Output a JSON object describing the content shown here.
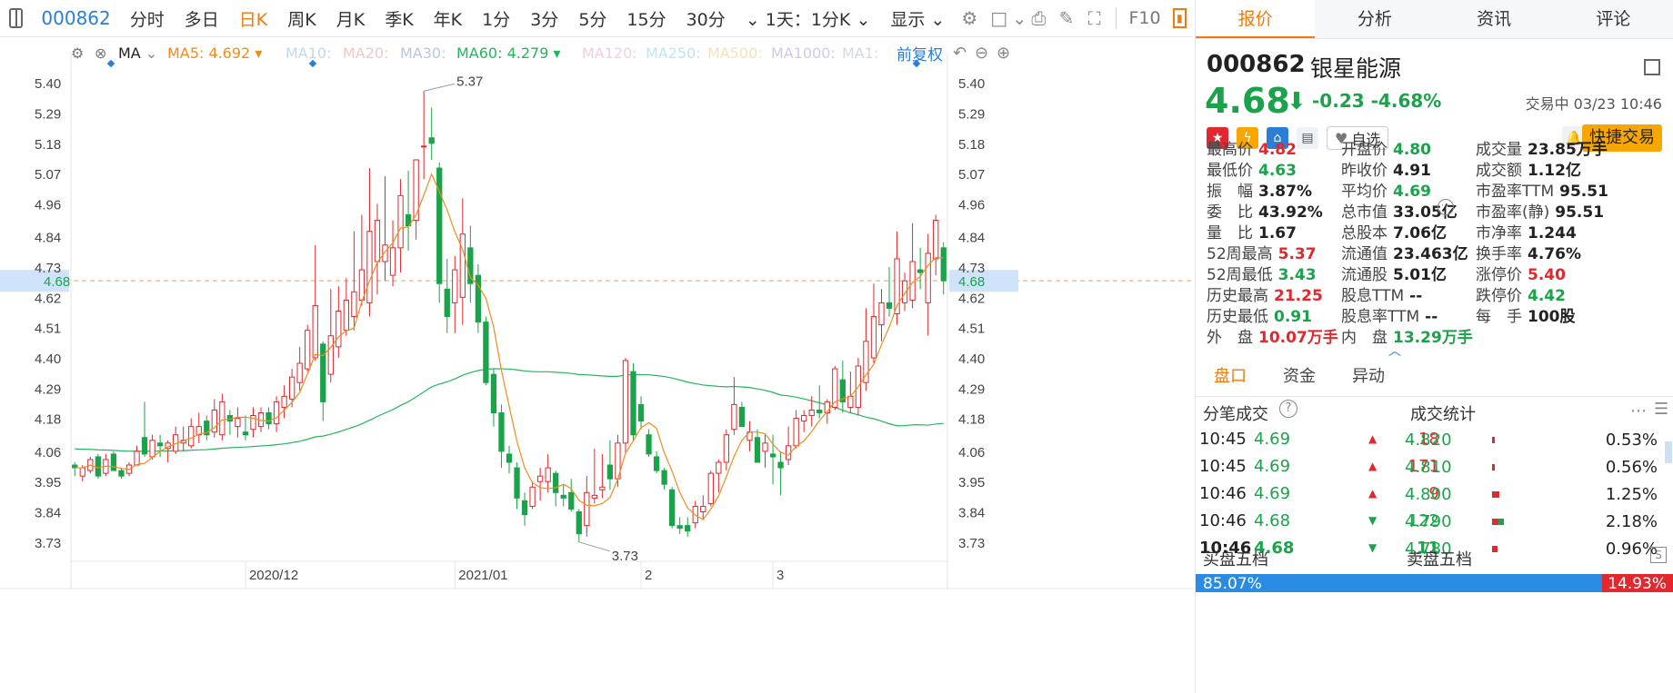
{
  "toolbar": {
    "code": "000862",
    "periods": [
      "分时",
      "多日",
      "日K",
      "周K",
      "月K",
      "季K",
      "年K",
      "1分",
      "3分",
      "5分",
      "15分",
      "30分"
    ],
    "active_period": "日K",
    "more": "1天：1分K",
    "display": "显示",
    "f10": "F10"
  },
  "ma": {
    "label": "MA",
    "ma5": "MA5: 4.692",
    "ma10": "MA10:",
    "ma20": "MA20:",
    "ma30": "MA30:",
    "ma60": "MA60: 4.279",
    "ma120": "MA120:",
    "ma250": "MA250:",
    "ma500": "MA500:",
    "ma1000": "MA1000:",
    "ma1": "MA1:",
    "adjust": "前复权",
    "colors": {
      "ma5": "#f08c1e",
      "ma60": "#27b45e",
      "faded": "#c9cfd8"
    }
  },
  "chart_data": {
    "type": "candlestick",
    "yticks": [
      "5.40",
      "5.29",
      "5.18",
      "5.07",
      "4.96",
      "4.84",
      "4.73",
      "4.62",
      "4.51",
      "4.40",
      "4.29",
      "4.18",
      "4.06",
      "3.95",
      "3.84",
      "3.73"
    ],
    "ylim": [
      3.66,
      5.47
    ],
    "xlabels": [
      "2020/12",
      "2021/01",
      "2",
      "3"
    ],
    "current_price": "4.68",
    "high_label": "5.37",
    "low_label": "3.73",
    "up_color": "#e0282e",
    "down_color": "#1aa34a",
    "candles": [
      [
        4.01,
        4.02,
        3.97,
        4.0
      ],
      [
        3.97,
        4.01,
        3.95,
        4.0
      ],
      [
        3.99,
        4.04,
        3.98,
        4.03
      ],
      [
        4.04,
        4.05,
        3.96,
        3.97
      ],
      [
        3.98,
        4.05,
        3.97,
        4.03
      ],
      [
        4.05,
        4.06,
        3.99,
        3.99
      ],
      [
        3.99,
        4.0,
        3.96,
        3.97
      ],
      [
        3.98,
        4.02,
        3.97,
        4.01
      ],
      [
        4.01,
        4.08,
        4.01,
        4.06
      ],
      [
        4.11,
        4.24,
        4.04,
        4.05
      ],
      [
        4.04,
        4.12,
        4.03,
        4.1
      ],
      [
        4.09,
        4.12,
        4.04,
        4.08
      ],
      [
        4.07,
        4.1,
        4.02,
        4.09
      ],
      [
        4.06,
        4.15,
        4.05,
        4.12
      ],
      [
        4.09,
        4.15,
        4.06,
        4.1
      ],
      [
        4.08,
        4.18,
        4.07,
        4.15
      ],
      [
        4.12,
        4.2,
        4.09,
        4.15
      ],
      [
        4.17,
        4.19,
        4.1,
        4.12
      ],
      [
        4.13,
        4.25,
        4.11,
        4.21
      ],
      [
        4.12,
        4.27,
        4.1,
        4.24
      ],
      [
        4.19,
        4.21,
        4.12,
        4.17
      ],
      [
        4.15,
        4.22,
        4.11,
        4.18
      ],
      [
        4.13,
        4.19,
        4.1,
        4.12
      ],
      [
        4.14,
        4.22,
        4.11,
        4.19
      ],
      [
        4.15,
        4.22,
        4.13,
        4.2
      ],
      [
        4.2,
        4.22,
        4.14,
        4.16
      ],
      [
        4.16,
        4.26,
        4.13,
        4.24
      ],
      [
        4.22,
        4.3,
        4.18,
        4.26
      ],
      [
        4.25,
        4.36,
        4.22,
        4.33
      ],
      [
        4.31,
        4.44,
        4.28,
        4.38
      ],
      [
        4.36,
        4.52,
        4.35,
        4.5
      ],
      [
        4.4,
        4.81,
        4.39,
        4.59
      ],
      [
        4.45,
        4.46,
        4.17,
        4.24
      ],
      [
        4.34,
        4.65,
        4.31,
        4.48
      ],
      [
        4.44,
        4.66,
        4.4,
        4.57
      ],
      [
        4.5,
        4.69,
        4.48,
        4.61
      ],
      [
        4.55,
        4.86,
        4.5,
        4.64
      ],
      [
        4.61,
        4.92,
        4.59,
        4.72
      ],
      [
        4.6,
        5.09,
        4.55,
        4.86
      ],
      [
        4.75,
        4.96,
        4.63,
        4.9
      ],
      [
        4.75,
        5.06,
        4.68,
        4.81
      ],
      [
        4.7,
        4.9,
        4.66,
        4.8
      ],
      [
        4.8,
        5.05,
        4.71,
        4.99
      ],
      [
        4.92,
        5.08,
        4.79,
        4.88
      ],
      [
        4.9,
        5.12,
        4.83,
        5.12
      ],
      [
        5.17,
        5.37,
        5.05,
        5.17
      ],
      [
        5.2,
        5.31,
        5.12,
        5.18
      ],
      [
        5.09,
        5.11,
        4.6,
        4.67
      ],
      [
        4.65,
        4.76,
        4.49,
        4.55
      ],
      [
        4.6,
        4.77,
        4.49,
        4.72
      ],
      [
        4.62,
        4.98,
        4.52,
        4.85
      ],
      [
        4.8,
        4.88,
        4.6,
        4.67
      ],
      [
        4.7,
        4.74,
        4.49,
        4.53
      ],
      [
        4.53,
        4.55,
        4.3,
        4.31
      ],
      [
        4.34,
        4.36,
        4.15,
        4.2
      ],
      [
        4.2,
        4.23,
        4.0,
        4.06
      ],
      [
        4.05,
        4.08,
        3.98,
        4.02
      ],
      [
        4.0,
        4.02,
        3.85,
        3.89
      ],
      [
        3.88,
        3.91,
        3.79,
        3.83
      ],
      [
        3.86,
        3.95,
        3.85,
        3.93
      ],
      [
        3.95,
        4.0,
        3.88,
        3.97
      ],
      [
        3.95,
        4.05,
        3.91,
        4.0
      ],
      [
        3.98,
        3.99,
        3.86,
        3.91
      ],
      [
        3.9,
        3.94,
        3.86,
        3.89
      ],
      [
        3.91,
        3.96,
        3.84,
        3.85
      ],
      [
        3.84,
        3.85,
        3.73,
        3.76
      ],
      [
        3.79,
        3.97,
        3.75,
        3.91
      ],
      [
        3.89,
        4.07,
        3.87,
        3.9
      ],
      [
        3.92,
        4.05,
        3.89,
        3.93
      ],
      [
        4.01,
        4.1,
        3.92,
        3.96
      ],
      [
        3.96,
        4.12,
        3.93,
        4.09
      ],
      [
        4.09,
        4.4,
        4.05,
        4.39
      ],
      [
        4.35,
        4.38,
        4.1,
        4.12
      ],
      [
        4.23,
        4.26,
        4.14,
        4.17
      ],
      [
        4.12,
        4.14,
        4.04,
        4.05
      ],
      [
        4.04,
        4.06,
        3.98,
        3.99
      ],
      [
        3.99,
        4.0,
        3.92,
        3.94
      ],
      [
        3.92,
        3.93,
        3.78,
        3.79
      ],
      [
        3.79,
        3.82,
        3.76,
        3.78
      ],
      [
        3.79,
        3.82,
        3.75,
        3.77
      ],
      [
        3.8,
        3.88,
        3.78,
        3.86
      ],
      [
        3.84,
        3.9,
        3.81,
        3.86
      ],
      [
        3.87,
        3.99,
        3.86,
        3.98
      ],
      [
        3.98,
        4.03,
        3.91,
        4.02
      ],
      [
        4.02,
        4.14,
        3.99,
        4.12
      ],
      [
        4.14,
        4.33,
        4.12,
        4.23
      ],
      [
        4.22,
        4.24,
        4.15,
        4.15
      ],
      [
        4.1,
        4.17,
        4.06,
        4.13
      ],
      [
        4.11,
        4.14,
        4.02,
        4.02
      ],
      [
        4.06,
        4.12,
        4.0,
        4.09
      ],
      [
        4.05,
        4.12,
        3.94,
        4.04
      ],
      [
        4.02,
        4.06,
        3.9,
        4.0
      ],
      [
        4.03,
        4.15,
        4.01,
        4.08
      ],
      [
        4.08,
        4.21,
        4.07,
        4.18
      ],
      [
        4.17,
        4.21,
        4.13,
        4.19
      ],
      [
        4.19,
        4.26,
        4.15,
        4.21
      ],
      [
        4.21,
        4.3,
        4.18,
        4.2
      ],
      [
        4.2,
        4.25,
        4.16,
        4.24
      ],
      [
        4.22,
        4.37,
        4.21,
        4.36
      ],
      [
        4.32,
        4.39,
        4.2,
        4.24
      ],
      [
        4.22,
        4.35,
        4.2,
        4.26
      ],
      [
        4.22,
        4.4,
        4.19,
        4.37
      ],
      [
        4.31,
        4.58,
        4.28,
        4.46
      ],
      [
        4.4,
        4.67,
        4.38,
        4.55
      ],
      [
        4.52,
        4.65,
        4.46,
        4.6
      ],
      [
        4.6,
        4.73,
        4.55,
        4.58
      ],
      [
        4.56,
        4.86,
        4.52,
        4.76
      ],
      [
        4.6,
        4.71,
        4.57,
        4.68
      ],
      [
        4.61,
        4.89,
        4.58,
        4.75
      ],
      [
        4.72,
        4.8,
        4.65,
        4.71
      ],
      [
        4.6,
        4.85,
        4.48,
        4.78
      ],
      [
        4.76,
        4.92,
        4.7,
        4.9
      ],
      [
        4.8,
        4.82,
        4.63,
        4.68
      ]
    ]
  },
  "tabs": [
    "报价",
    "分析",
    "资讯",
    "评论"
  ],
  "active_tab": "报价",
  "stock": {
    "code": "000862",
    "name": "银星能源",
    "price": "4.68",
    "change": "-0.23",
    "change_pct": "-4.68%",
    "status": "交易中 03/23 10:46",
    "watch": "自选",
    "trade": "快捷交易"
  },
  "stats": [
    {
      "label": "最高价",
      "value": "4.82",
      "dir": "up"
    },
    {
      "label": "开盘价",
      "value": "4.80",
      "dir": "dn"
    },
    {
      "label": "成交量",
      "value": "23.85万手",
      "dir": "neu"
    },
    {
      "label": "最低价",
      "value": "4.63",
      "dir": "dn"
    },
    {
      "label": "昨收价",
      "value": "4.91",
      "dir": "neu"
    },
    {
      "label": "成交额",
      "value": "1.12亿",
      "dir": "neu"
    },
    {
      "label": "振　幅",
      "value": "3.87%",
      "dir": "neu"
    },
    {
      "label": "平均价",
      "value": "4.69",
      "dir": "dn"
    },
    {
      "label": "市盈率TTM",
      "value": "95.51",
      "dir": "neu"
    },
    {
      "label": "委　比",
      "value": "43.92%",
      "dir": "neu"
    },
    {
      "label": "总市值",
      "value": "33.05亿",
      "dir": "neu"
    },
    {
      "label": "市盈率(静)",
      "value": "95.51",
      "dir": "neu"
    },
    {
      "label": "量　比",
      "value": "1.67",
      "dir": "neu"
    },
    {
      "label": "总股本",
      "value": "7.06亿",
      "dir": "neu"
    },
    {
      "label": "市净率",
      "value": "1.244",
      "dir": "neu"
    },
    {
      "label": "52周最高",
      "value": "5.37",
      "dir": "up"
    },
    {
      "label": "流通值",
      "value": "23.463亿",
      "dir": "neu"
    },
    {
      "label": "换手率",
      "value": "4.76%",
      "dir": "neu"
    },
    {
      "label": "52周最低",
      "value": "3.43",
      "dir": "dn"
    },
    {
      "label": "流通股",
      "value": "5.01亿",
      "dir": "neu"
    },
    {
      "label": "涨停价",
      "value": "5.40",
      "dir": "up"
    },
    {
      "label": "历史最高",
      "value": "21.25",
      "dir": "up"
    },
    {
      "label": "股息TTM",
      "value": "--",
      "dir": "neu"
    },
    {
      "label": "跌停价",
      "value": "4.42",
      "dir": "dn"
    },
    {
      "label": "历史最低",
      "value": "0.91",
      "dir": "dn"
    },
    {
      "label": "股息率TTM",
      "value": "--",
      "dir": "neu"
    },
    {
      "label": "每　手",
      "value": "100股",
      "dir": "neu"
    },
    {
      "label": "外　盘",
      "value": "10.07万手",
      "dir": "up"
    },
    {
      "label": "内　盘",
      "value": "13.29万手",
      "dir": "dn"
    }
  ],
  "subtabs": [
    "盘口",
    "资金",
    "异动"
  ],
  "trades_title": "分笔成交",
  "stats_title": "成交统计",
  "trades": [
    {
      "time": "10:45",
      "price": "4.69",
      "vol": "18",
      "dir": "up",
      "bold": false
    },
    {
      "time": "10:45",
      "price": "4.69",
      "vol": "171",
      "dir": "up",
      "bold": false
    },
    {
      "time": "10:46",
      "price": "4.69",
      "vol": "9",
      "dir": "up",
      "bold": false
    },
    {
      "time": "10:46",
      "price": "4.68",
      "vol": "122",
      "dir": "dn",
      "bold": false
    },
    {
      "time": "10:46",
      "price": "4.68",
      "vol": "11",
      "dir": "dn",
      "bold": true
    }
  ],
  "trade_stats": [
    {
      "price": "4.820",
      "pct": "0.53%",
      "share": 0.0053
    },
    {
      "price": "4.810",
      "pct": "0.56%",
      "share": 0.0056
    },
    {
      "price": "4.800",
      "pct": "1.25%",
      "share": 0.0125
    },
    {
      "price": "4.790",
      "pct": "2.18%",
      "share": 0.0218
    },
    {
      "price": "4.780",
      "pct": "0.96%",
      "share": 0.0096
    }
  ],
  "buy5": "买盘五档",
  "sell5": "卖盘五档",
  "buy_ratio": "85.07%",
  "sell_ratio": "14.93%"
}
